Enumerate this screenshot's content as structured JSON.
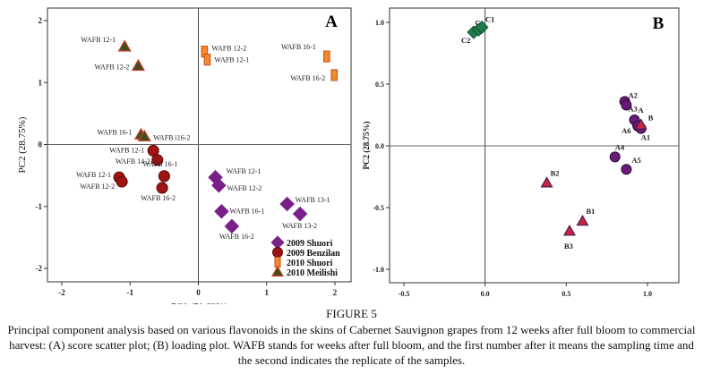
{
  "figure": {
    "title": "FIGURE 5",
    "caption": "Principal component analysis based on various flavonoids in the skins of Cabernet Sauvignon grapes from 12 weeks after full bloom to commercial harvest: (A) score scatter plot; (B) loading plot. WAFB stands for weeks after full bloom, and the first number after it means the sampling time and the second indicates the replicate of the samples."
  },
  "colors": {
    "shuori2009": "#7b1f8a",
    "benzilan2009": "#9e1414",
    "shuori2010": "#f08a2c",
    "meilishi2010": "#3e4f1e",
    "meilishi_edge": "#d0402c",
    "groupA": "#6a1b7a",
    "groupB": "#c8283c",
    "groupC": "#1e7a4a"
  },
  "chart_data": [
    {
      "type": "scatter",
      "panel_label": "A",
      "xlabel": "PC1 (51.69%)",
      "ylabel": "PC2 (28.75%)",
      "xlim": [
        -2.2,
        2.2
      ],
      "ylim": [
        -2.2,
        2.2
      ],
      "xticks": [
        -2,
        -1,
        0,
        1,
        2
      ],
      "yticks": [
        -2,
        -1,
        0,
        1,
        2
      ],
      "xtick_labels": [
        "-2",
        "-1",
        "0",
        "1",
        "2"
      ],
      "ytick_labels": [
        "-2",
        "-1",
        "0",
        "1",
        "2"
      ],
      "reference_lines": {
        "x": 0,
        "y": 0
      },
      "legend_position": "bottom-right",
      "series": [
        {
          "name": "2009 Shuori",
          "marker": "diamond",
          "color_key": "shuori2009",
          "points": [
            {
              "label": "WAFB 12-1",
              "x": 0.25,
              "y": -0.53
            },
            {
              "label": "WAFB 12-2",
              "x": 0.3,
              "y": -0.66
            },
            {
              "label": "WAFB 16-1",
              "x": 0.34,
              "y": -1.08
            },
            {
              "label": "WAFB 16-2",
              "x": 0.49,
              "y": -1.32
            },
            {
              "label": "WAFB 13-1",
              "x": 1.3,
              "y": -0.96
            },
            {
              "label": "WAFB 13-2",
              "x": 1.49,
              "y": -1.12
            }
          ]
        },
        {
          "name": "2009 Benzilan",
          "marker": "circle",
          "color_key": "benzilan2009",
          "points": [
            {
              "label": "WAFB 12-1",
              "x": -0.66,
              "y": -0.1
            },
            {
              "label": "WAFB 14-2",
              "x": -0.6,
              "y": -0.25
            },
            {
              "label": "WAFB 16-1",
              "x": -0.5,
              "y": -0.51
            },
            {
              "label": "WAFB 12-1",
              "x": -1.16,
              "y": -0.53
            },
            {
              "label": "WAFB 12-2",
              "x": -1.12,
              "y": -0.6
            },
            {
              "label": "WAFB 16-2",
              "x": -0.53,
              "y": -0.7
            }
          ]
        },
        {
          "name": "2010 Shuori",
          "marker": "square",
          "color_key": "shuori2010",
          "points": [
            {
              "label": "WAFB 12-2",
              "x": 0.09,
              "y": 1.5
            },
            {
              "label": "WAFB 12-1",
              "x": 0.13,
              "y": 1.37
            },
            {
              "label": "WAFB 16-1",
              "x": 1.88,
              "y": 1.42
            },
            {
              "label": "WAFB 16-2",
              "x": 1.99,
              "y": 1.12
            }
          ]
        },
        {
          "name": "2010 Meilishi",
          "marker": "triangle",
          "color_key": "meilishi2010",
          "points": [
            {
              "label": "WAFB 12-1",
              "x": -1.08,
              "y": 1.58
            },
            {
              "label": "WAFB 12-2",
              "x": -0.88,
              "y": 1.27
            },
            {
              "label": "WAFB 16-1",
              "x": -0.84,
              "y": 0.16
            },
            {
              "label": "WAFB i16-2",
              "x": -0.79,
              "y": 0.13
            }
          ]
        }
      ]
    },
    {
      "type": "scatter",
      "panel_label": "B",
      "xlabel": "PC1 (51.69%)",
      "ylabel": "PC2 (28.75%)",
      "xlim": [
        -0.59,
        1.19
      ],
      "ylim": [
        -1.11,
        1.12
      ],
      "xticks": [
        -0.5,
        0.0,
        0.5,
        1.0
      ],
      "yticks": [
        -1.0,
        -0.5,
        0.0,
        0.5,
        1.0
      ],
      "xtick_labels": [
        "-0.5",
        "0.0",
        "0.5",
        "1.0"
      ],
      "ytick_labels": [
        "-1.0",
        "-0.5",
        "0.0",
        "0.5",
        "1.0"
      ],
      "reference_lines": {
        "x": 0,
        "y": 0
      },
      "series": [
        {
          "name": "C",
          "marker": "diamond",
          "color_key": "groupC",
          "points": [
            {
              "label": "C2",
              "x": -0.07,
              "y": 0.92
            },
            {
              "label": "C",
              "x": -0.04,
              "y": 0.94
            },
            {
              "label": "C1",
              "x": -0.02,
              "y": 0.96
            }
          ]
        },
        {
          "name": "A",
          "marker": "circle",
          "color_key": "groupA",
          "points": [
            {
              "label": "A2",
              "x": 0.86,
              "y": 0.36
            },
            {
              "label": "A3",
              "x": 0.87,
              "y": 0.33
            },
            {
              "label": "A",
              "x": 0.92,
              "y": 0.21
            },
            {
              "label": "A6",
              "x": 0.94,
              "y": 0.16
            },
            {
              "label": "A1",
              "x": 0.96,
              "y": 0.14
            },
            {
              "label": "A4",
              "x": 0.8,
              "y": -0.09
            },
            {
              "label": "A5",
              "x": 0.87,
              "y": -0.19
            }
          ]
        },
        {
          "name": "B",
          "marker": "triangle",
          "color_key": "groupB",
          "points": [
            {
              "label": "B",
              "x": 0.96,
              "y": 0.17
            },
            {
              "label": "B2",
              "x": 0.38,
              "y": -0.3
            },
            {
              "label": "B1",
              "x": 0.6,
              "y": -0.61
            },
            {
              "label": "B3",
              "x": 0.52,
              "y": -0.69
            }
          ]
        }
      ]
    }
  ]
}
